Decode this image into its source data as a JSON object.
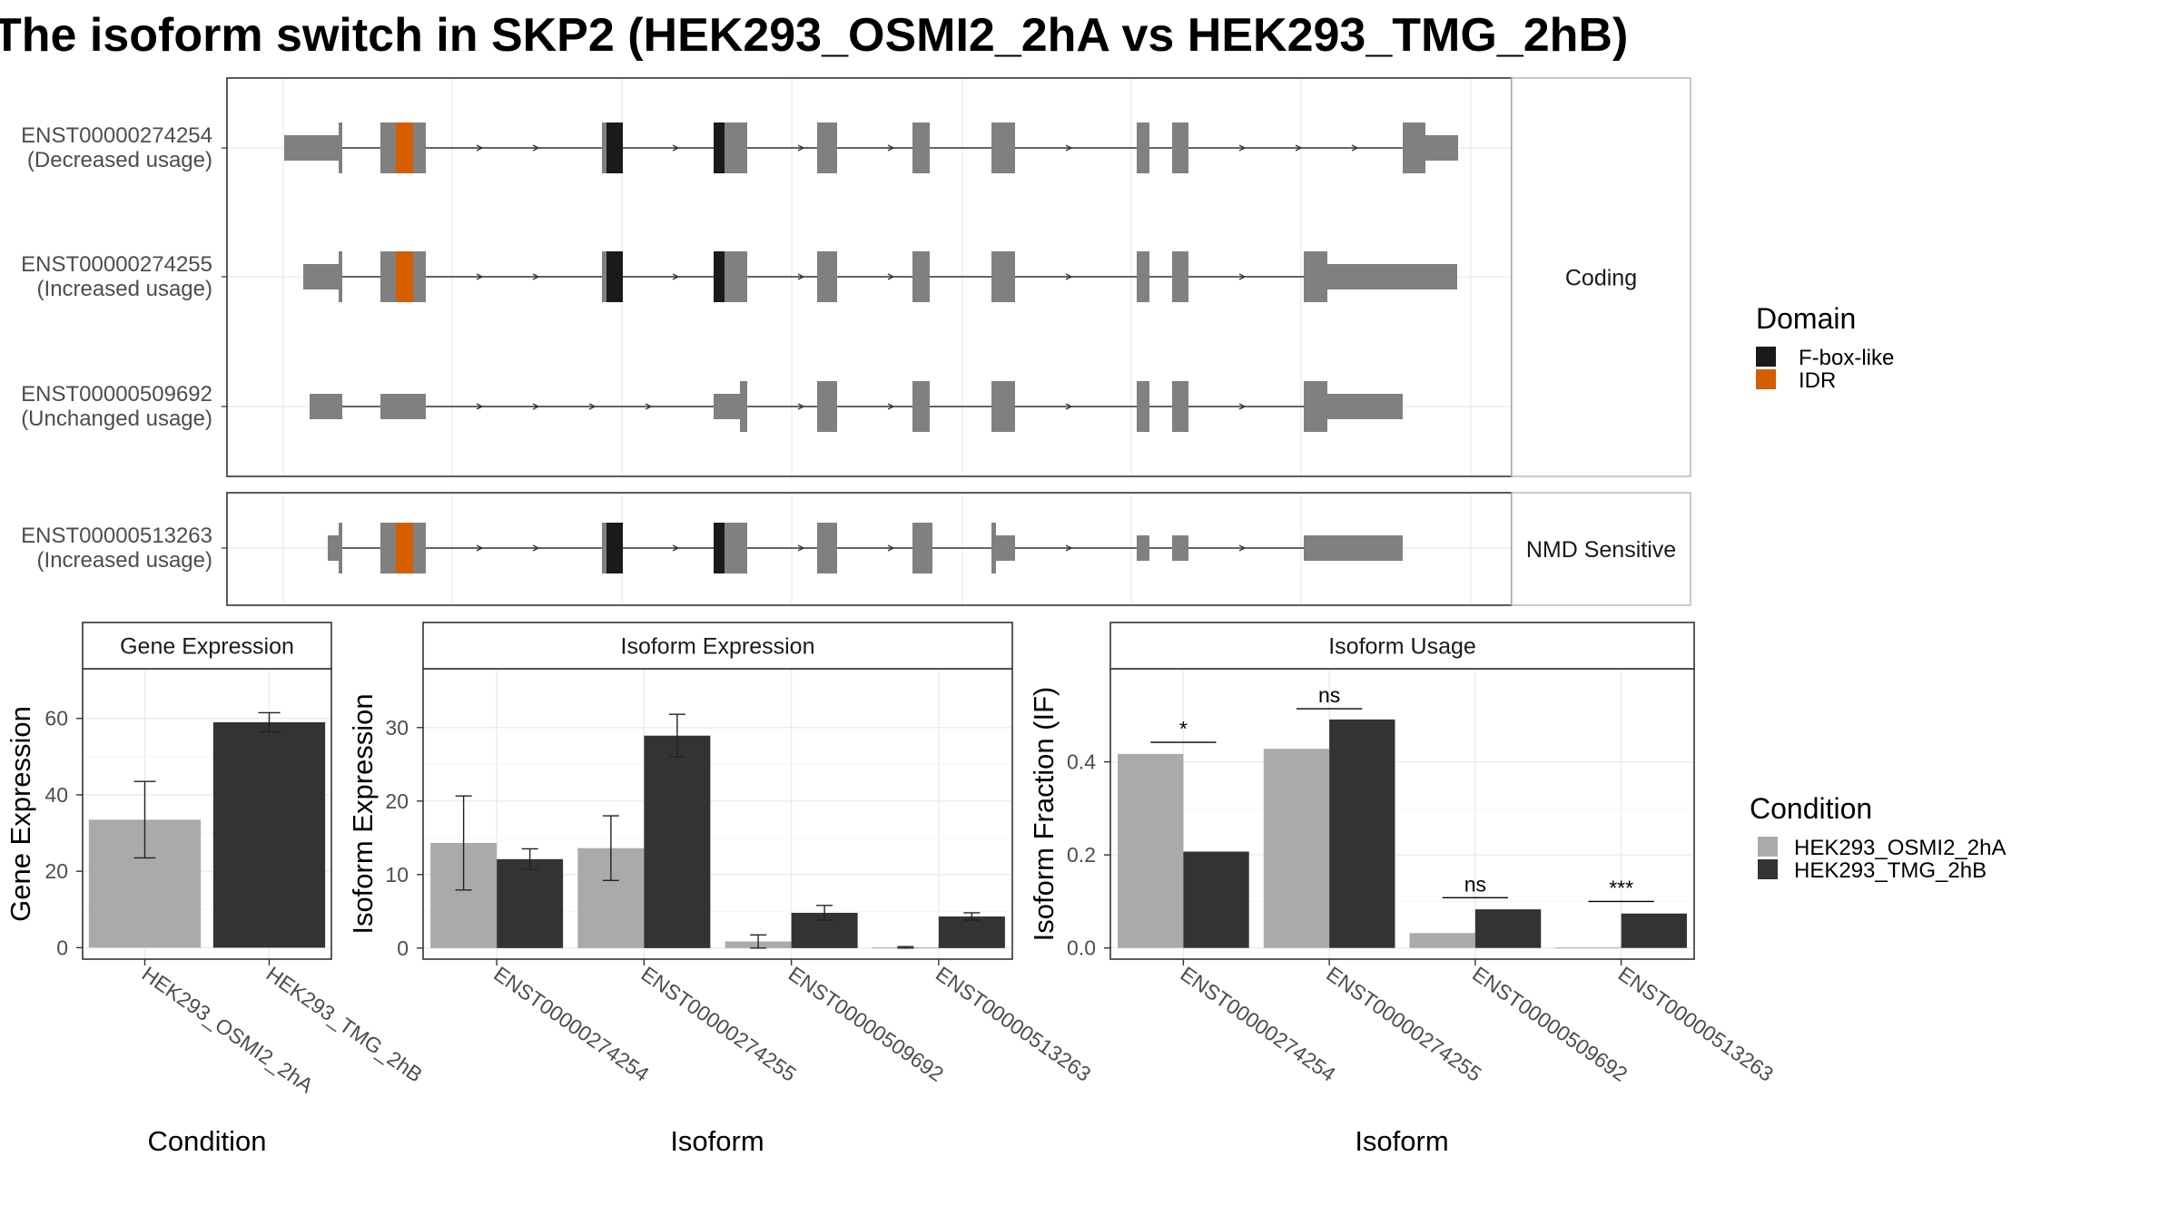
{
  "title": "The isoform switch in SKP2 (HEK293_OSMI2_2hA vs HEK293_TMG_2hB)",
  "colors": {
    "exon": "#808080",
    "fbox": "#1a1a1a",
    "idr": "#d55e00",
    "cond1": "#aaaaaa",
    "cond2": "#333333",
    "grid": "#ebebeb",
    "border": "#333333"
  },
  "structure": {
    "groups": [
      {
        "label": "Coding",
        "transcripts": [
          0,
          1,
          2
        ]
      },
      {
        "label": "NMD Sensitive",
        "transcripts": [
          3
        ]
      }
    ],
    "transcripts": [
      {
        "id": "ENST00000274254",
        "usage": "(Decreased usage)"
      },
      {
        "id": "ENST00000274255",
        "usage": "(Increased usage)"
      },
      {
        "id": "ENST00000509692",
        "usage": "(Unchanged usage)"
      },
      {
        "id": "ENST00000513263",
        "usage": "(Increased usage)"
      }
    ]
  },
  "domain_legend": {
    "title": "Domain",
    "items": [
      {
        "label": "F-box-like",
        "color": "#1a1a1a"
      },
      {
        "label": "IDR",
        "color": "#d55e00"
      }
    ]
  },
  "condition_legend": {
    "title": "Condition",
    "items": [
      {
        "label": "HEK293_OSMI2_2hA",
        "color": "#aaaaaa"
      },
      {
        "label": "HEK293_TMG_2hB",
        "color": "#333333"
      }
    ]
  },
  "chart_data": [
    {
      "type": "bar",
      "title": "Gene Expression",
      "xlabel": "Condition",
      "ylabel": "Gene Expression",
      "categories": [
        "HEK293_OSMI2_2hA",
        "HEK293_TMG_2hB"
      ],
      "values": [
        33.5,
        59
      ],
      "error_low": [
        23.5,
        56.5
      ],
      "error_high": [
        43.5,
        61.5
      ],
      "ylim": [
        -3,
        73
      ],
      "yticks": [
        0,
        20,
        40,
        60
      ]
    },
    {
      "type": "bar",
      "title": "Isoform Expression",
      "xlabel": "Isoform",
      "ylabel": "Isoform Expression",
      "categories": [
        "ENST00000274254",
        "ENST00000274255",
        "ENST00000509692",
        "ENST00000513263"
      ],
      "series": [
        {
          "name": "HEK293_OSMI2_2hA",
          "values": [
            14.3,
            13.6,
            0.9,
            0.1
          ],
          "error_low": [
            7.9,
            9.2,
            0.0,
            0.0
          ],
          "error_high": [
            20.7,
            18.0,
            1.8,
            0.2
          ]
        },
        {
          "name": "HEK293_TMG_2hB",
          "values": [
            12.1,
            28.9,
            4.8,
            4.3
          ],
          "error_low": [
            10.7,
            26.0,
            3.8,
            3.8
          ],
          "error_high": [
            13.5,
            31.8,
            5.8,
            4.8
          ]
        }
      ],
      "ylim": [
        -1.5,
        38
      ],
      "yticks": [
        0,
        10,
        20,
        30
      ]
    },
    {
      "type": "bar",
      "title": "Isoform Usage",
      "xlabel": "Isoform",
      "ylabel": "Isoform Fraction (IF)",
      "categories": [
        "ENST00000274254",
        "ENST00000274255",
        "ENST00000509692",
        "ENST00000513263"
      ],
      "series": [
        {
          "name": "HEK293_OSMI2_2hA",
          "values": [
            0.417,
            0.428,
            0.032,
            0.001
          ]
        },
        {
          "name": "HEK293_TMG_2hB",
          "values": [
            0.207,
            0.491,
            0.083,
            0.074
          ]
        }
      ],
      "significance": [
        "*",
        "ns",
        "ns",
        "***"
      ],
      "sig_y": [
        0.442,
        0.514,
        0.108,
        0.1
      ],
      "ylim": [
        -0.024,
        0.6
      ],
      "yticks": [
        0.0,
        0.2,
        0.4
      ],
      "ytick_labels": [
        "0.0",
        "0.2",
        "0.4"
      ]
    }
  ]
}
